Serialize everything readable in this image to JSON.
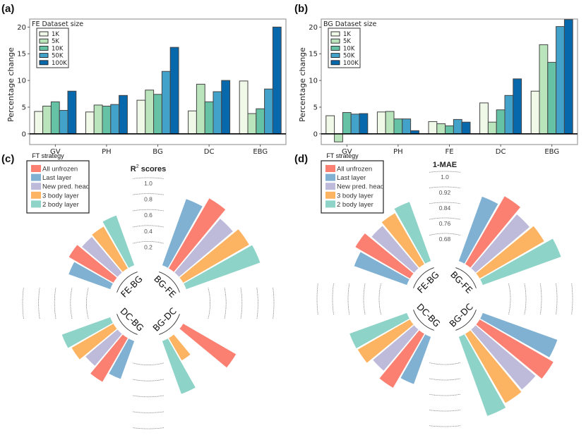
{
  "chart_data": [
    {
      "id": "a",
      "panel_label": "(a)",
      "type": "bar",
      "title": "",
      "xlabel": "",
      "ylabel": "Percentage change",
      "ylim": [
        -2,
        21.5
      ],
      "yticks": [
        0,
        5,
        10,
        15,
        20
      ],
      "legend_title": "FE Dataset size",
      "legend_position": "top-left",
      "categories": [
        "GV",
        "PH",
        "BG",
        "DC",
        "EBG"
      ],
      "series": [
        {
          "name": "1K",
          "color": "#f0f9e8",
          "values": [
            4.2,
            4.1,
            6.3,
            4.3,
            9.9
          ]
        },
        {
          "name": "5K",
          "color": "#bae4bc",
          "values": [
            5.2,
            5.4,
            8.2,
            9.3,
            3.8
          ]
        },
        {
          "name": "10K",
          "color": "#66c2a4",
          "values": [
            6.0,
            5.2,
            7.4,
            6.0,
            4.7
          ]
        },
        {
          "name": "50K",
          "color": "#43a2ca",
          "values": [
            4.4,
            5.5,
            11.7,
            7.9,
            8.4
          ]
        },
        {
          "name": "100K",
          "color": "#0868ac",
          "values": [
            8.0,
            7.2,
            16.2,
            10.0,
            20.0
          ]
        }
      ]
    },
    {
      "id": "b",
      "panel_label": "(b)",
      "type": "bar",
      "title": "",
      "xlabel": "",
      "ylabel": "Percentage change",
      "ylim": [
        -2,
        21.5
      ],
      "yticks": [
        0,
        5,
        10,
        15,
        20
      ],
      "legend_title": "BG Dataset size",
      "legend_position": "top-left",
      "categories": [
        "GV",
        "PH",
        "FE",
        "DC",
        "EBG"
      ],
      "series": [
        {
          "name": "1K",
          "color": "#f0f9e8",
          "values": [
            3.4,
            4.1,
            2.3,
            5.8,
            8.0
          ]
        },
        {
          "name": "5K",
          "color": "#bae4bc",
          "values": [
            -1.5,
            4.2,
            1.9,
            2.2,
            16.7
          ]
        },
        {
          "name": "10K",
          "color": "#66c2a4",
          "values": [
            4.0,
            2.8,
            1.5,
            4.5,
            13.4
          ]
        },
        {
          "name": "50K",
          "color": "#43a2ca",
          "values": [
            3.7,
            2.8,
            2.7,
            7.2,
            20.1
          ]
        },
        {
          "name": "100K",
          "color": "#0868ac",
          "values": [
            3.8,
            0.6,
            2.2,
            10.3,
            21.4
          ]
        }
      ]
    },
    {
      "id": "c",
      "panel_label": "(c)",
      "type": "bar",
      "subtype": "polar",
      "title": "R² scores",
      "title_main": "R",
      "title_sup": "2",
      "title_rest": " scores",
      "radial_ticks": [
        "1.0",
        "0.8",
        "0.6",
        "0.4",
        "0.2"
      ],
      "radial_tick_values": [
        1.0,
        0.8,
        0.6,
        0.4,
        0.2
      ],
      "rlim": [
        0,
        1.0
      ],
      "legend_title": "FT strategy",
      "legend_position": "top-left",
      "categories": [
        "FE-BG",
        "BG-FE",
        "BG-DC",
        "DC-BG"
      ],
      "series": [
        {
          "name": "Last layer",
          "color": "#80b1d3",
          "values": [
            0.49,
            0.82,
            null,
            0.44
          ]
        },
        {
          "name": "All unfrozen",
          "color": "#fb8072",
          "values": [
            0.58,
            0.95,
            0.7,
            0.57
          ]
        },
        {
          "name": "New pred. head",
          "color": "#bebada",
          "values": [
            0.52,
            0.82,
            null,
            0.46
          ]
        },
        {
          "name": "3 body layer",
          "color": "#fdb462",
          "values": [
            0.54,
            0.89,
            0.26,
            0.54
          ]
        },
        {
          "name": "2 body layer",
          "color": "#8dd3c7",
          "values": [
            0.6,
            0.92,
            0.64,
            0.58
          ]
        }
      ]
    },
    {
      "id": "d",
      "panel_label": "(d)",
      "type": "bar",
      "subtype": "polar",
      "title": "1-MAE",
      "radial_ticks": [
        "1.0",
        "0.92",
        "0.84",
        "0.76",
        "0.68"
      ],
      "radial_tick_values": [
        1.0,
        0.92,
        0.84,
        0.76,
        0.68
      ],
      "rlim": [
        0.6,
        1.0
      ],
      "legend_title": "FT strategy",
      "legend_position": "top-left",
      "categories": [
        "FE-BG",
        "BG-FE",
        "BG-DC",
        "DC-BG"
      ],
      "series": [
        {
          "name": "Last layer",
          "color": "#80b1d3",
          "values": [
            0.84,
            0.905,
            0.96,
            0.81
          ]
        },
        {
          "name": "All unfrozen",
          "color": "#fb8072",
          "values": [
            0.876,
            0.956,
            0.99,
            0.873
          ]
        },
        {
          "name": "New pred. head",
          "color": "#bebada",
          "values": [
            0.838,
            0.916,
            0.956,
            0.829
          ]
        },
        {
          "name": "3 body layer",
          "color": "#fdb462",
          "values": [
            0.855,
            0.935,
            0.964,
            0.862
          ]
        },
        {
          "name": "2 body layer",
          "color": "#8dd3c7",
          "values": [
            0.876,
            0.98,
            0.985,
            0.865
          ]
        }
      ]
    }
  ],
  "polar_legend_order": [
    "All unfrozen",
    "Last layer",
    "New pred. head",
    "3 body layer",
    "2 body layer"
  ]
}
